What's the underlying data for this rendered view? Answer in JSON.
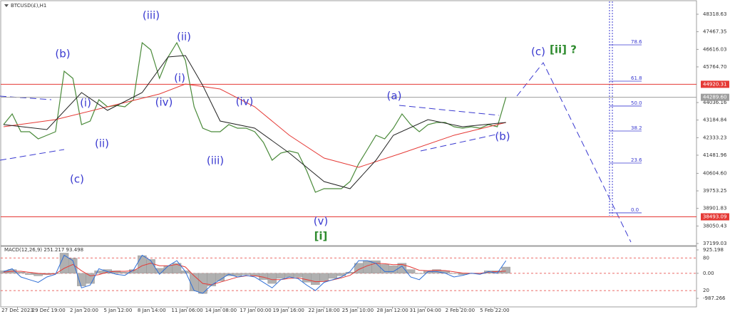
{
  "chart_data": [
    {
      "type": "line",
      "title": "BTCUSD(£),H1",
      "xlim": [
        0,
        80
      ],
      "xticks": [
        {
          "value": 1.6,
          "label": "27 Dec 2023"
        },
        {
          "value": 5.2,
          "label": "29 Dec 19:00"
        },
        {
          "value": 9.3,
          "label": "2 Jan 20:00"
        },
        {
          "value": 13.2,
          "label": "5 Jan 12:00"
        },
        {
          "value": 17.1,
          "label": "8 Jan 14:00"
        },
        {
          "value": 21.2,
          "label": "11 Jan 06:00"
        },
        {
          "value": 25.1,
          "label": "14 Jan 08:00"
        },
        {
          "value": 29.1,
          "label": "17 Jan 00:00"
        },
        {
          "value": 32.9,
          "label": "19 Jan 16:00"
        },
        {
          "value": 37,
          "label": "22 Jan 18:00"
        },
        {
          "value": 40.9,
          "label": "25 Jan 10:00"
        },
        {
          "value": 44.9,
          "label": "28 Jan 12:00"
        },
        {
          "value": 48.7,
          "label": "31 Jan 04:00"
        },
        {
          "value": 52.7,
          "label": "2 Feb 20:00"
        },
        {
          "value": 56.7,
          "label": "5 Feb 22:00"
        }
      ],
      "ylim": [
        37095,
        48871
      ],
      "yticks": [
        48318.63,
        47467.35,
        46616.03,
        {
          "value": 45764.7,
          "label": "45764.70"
        },
        44036.16,
        43184.84,
        42333.23,
        41481.96,
        {
          "value": 40604.6,
          "label": "40604.60"
        },
        39753.25,
        38901.83,
        38050.43,
        37199.03
      ],
      "series": [
        {
          "color": "#4a8a3a",
          "x": [
            0,
            1,
            2,
            3,
            4,
            5,
            6,
            7,
            8,
            9,
            10,
            11,
            12,
            13,
            14,
            15,
            16,
            17,
            18,
            19,
            20,
            21,
            22,
            23,
            24,
            25,
            26,
            27,
            28,
            29,
            30,
            31,
            32,
            33,
            34,
            35,
            36,
            37,
            38,
            39,
            40,
            41,
            42,
            43,
            44,
            45,
            46,
            47,
            48,
            49,
            50,
            51,
            52,
            53,
            54,
            55,
            56,
            57,
            58
          ],
          "values": [
            42967,
            43485,
            42621,
            42621,
            42276,
            42449,
            42621,
            45556,
            45211,
            42967,
            43139,
            44175,
            43830,
            43899,
            43830,
            44175,
            46937,
            46592,
            45211,
            46247,
            46937,
            46075,
            43830,
            42794,
            42621,
            42621,
            42967,
            42794,
            42794,
            42621,
            42103,
            41240,
            41585,
            41689,
            41585,
            40722,
            39686,
            39859,
            39859,
            39859,
            40204,
            41067,
            41758,
            42449,
            42276,
            42794,
            43485,
            42967,
            42621,
            42967,
            43070,
            43070,
            42863,
            42794,
            42863,
            42794,
            42967,
            42863,
            44290
          ]
        },
        {
          "color": "#e53935",
          "x": [
            0,
            6,
            12,
            18,
            21,
            25,
            29,
            33,
            37,
            41,
            46,
            52,
            58
          ],
          "values": [
            42863,
            43209,
            43830,
            44452,
            44935,
            44693,
            43830,
            42449,
            41344,
            40895,
            41585,
            42449,
            43070
          ]
        },
        {
          "color": "#222222",
          "x": [
            0,
            5,
            9,
            12,
            16,
            19,
            21,
            23,
            25,
            29,
            33,
            37,
            40,
            43,
            45,
            49,
            53,
            58
          ],
          "values": [
            42967,
            42725,
            44521,
            43657,
            44521,
            46247,
            46316,
            44866,
            43139,
            42794,
            41585,
            40204,
            39859,
            41240,
            42449,
            43209,
            42863,
            43070
          ]
        }
      ],
      "levels": [
        {
          "value": 44920.31,
          "color": "#e53935"
        },
        {
          "value": 44289.6,
          "label": "44289.60",
          "color": "#9e9e9e"
        },
        {
          "value": 38493.09,
          "color": "#e53935"
        }
      ],
      "fib_levels": [
        {
          "value": 78.6,
          "price": 46834
        },
        {
          "value": 61.8,
          "price": 45073
        },
        {
          "value": 50,
          "label": "50.0",
          "price": 43865
        },
        {
          "value": 38.2,
          "price": 42656
        },
        {
          "value": 23.6,
          "price": 41102
        },
        {
          "value": 0,
          "label": "0.0",
          "price": 38685
        }
      ],
      "annotations": [
        {
          "text": "(b)",
          "color": "#3a3ad0"
        },
        {
          "text": "(i)",
          "color": "#3a3ad0"
        },
        {
          "text": "(ii)",
          "color": "#3a3ad0"
        },
        {
          "text": "(c)",
          "color": "#3a3ad0"
        },
        {
          "text": "(iii)",
          "color": "#3a3ad0"
        },
        {
          "text": "(ii)",
          "color": "#3a3ad0"
        },
        {
          "text": "(i)",
          "color": "#3a3ad0"
        },
        {
          "text": "(iv)",
          "color": "#3a3ad0"
        },
        {
          "text": "(iv)",
          "color": "#3a3ad0"
        },
        {
          "text": "(iii)",
          "color": "#3a3ad0"
        },
        {
          "text": "(v)",
          "color": "#3a3ad0"
        },
        {
          "text": "[i]",
          "color": "#2e8b2e"
        },
        {
          "text": "(a)",
          "color": "#3a3ad0"
        },
        {
          "text": "(b)",
          "color": "#3a3ad0"
        },
        {
          "text": "(c)",
          "color": "#3a3ad0"
        },
        {
          "text": "[ii] ?",
          "color": "#2e8b2e"
        }
      ]
    },
    {
      "type": "macd",
      "title": "MACD(12,26,9) 251.217 93.498",
      "ylim": [
        -1325,
        1037
      ],
      "yticks": [
        925.198,
        {
          "value": 0,
          "label": "0.00"
        },
        -987.266
      ],
      "y2lim": [
        -10,
        100
      ],
      "y2ticks": [
        80,
        20
      ],
      "series": [
        {
          "type": "bar",
          "color": "#b0b0b0",
          "values": [
            100,
            150,
            50,
            -50,
            -100,
            -50,
            0,
            800,
            600,
            -500,
            -400,
            100,
            150,
            100,
            50,
            150,
            700,
            550,
            200,
            300,
            400,
            100,
            -700,
            -800,
            -500,
            -300,
            -100,
            -100,
            -50,
            -100,
            -250,
            -400,
            -200,
            -150,
            -150,
            -350,
            -450,
            -300,
            -200,
            -100,
            50,
            400,
            500,
            500,
            350,
            300,
            400,
            150,
            0,
            100,
            150,
            100,
            0,
            -50,
            0,
            0,
            100,
            100,
            250
          ]
        },
        {
          "type": "line",
          "color": "#e53935",
          "values": [
            50,
            80,
            80,
            40,
            0,
            -30,
            -20,
            200,
            350,
            100,
            -100,
            -50,
            50,
            80,
            80,
            100,
            300,
            400,
            300,
            300,
            350,
            250,
            -100,
            -400,
            -450,
            -350,
            -250,
            -150,
            -100,
            -100,
            -150,
            -250,
            -250,
            -200,
            -180,
            -250,
            -330,
            -320,
            -260,
            -180,
            -80,
            150,
            300,
            400,
            380,
            340,
            350,
            250,
            120,
            100,
            120,
            110,
            60,
            10,
            0,
            0,
            50,
            70,
            90
          ]
        },
        {
          "type": "line",
          "axis": "y2",
          "color": "#2f6fd6",
          "values": [
            55,
            60,
            45,
            40,
            35,
            45,
            50,
            85,
            75,
            25,
            30,
            60,
            55,
            50,
            48,
            58,
            85,
            75,
            50,
            65,
            75,
            55,
            20,
            15,
            30,
            40,
            50,
            45,
            48,
            45,
            35,
            25,
            40,
            45,
            42,
            30,
            20,
            35,
            40,
            45,
            55,
            75,
            75,
            70,
            55,
            55,
            65,
            45,
            40,
            55,
            55,
            52,
            45,
            48,
            52,
            50,
            55,
            52,
            75
          ]
        }
      ]
    }
  ]
}
